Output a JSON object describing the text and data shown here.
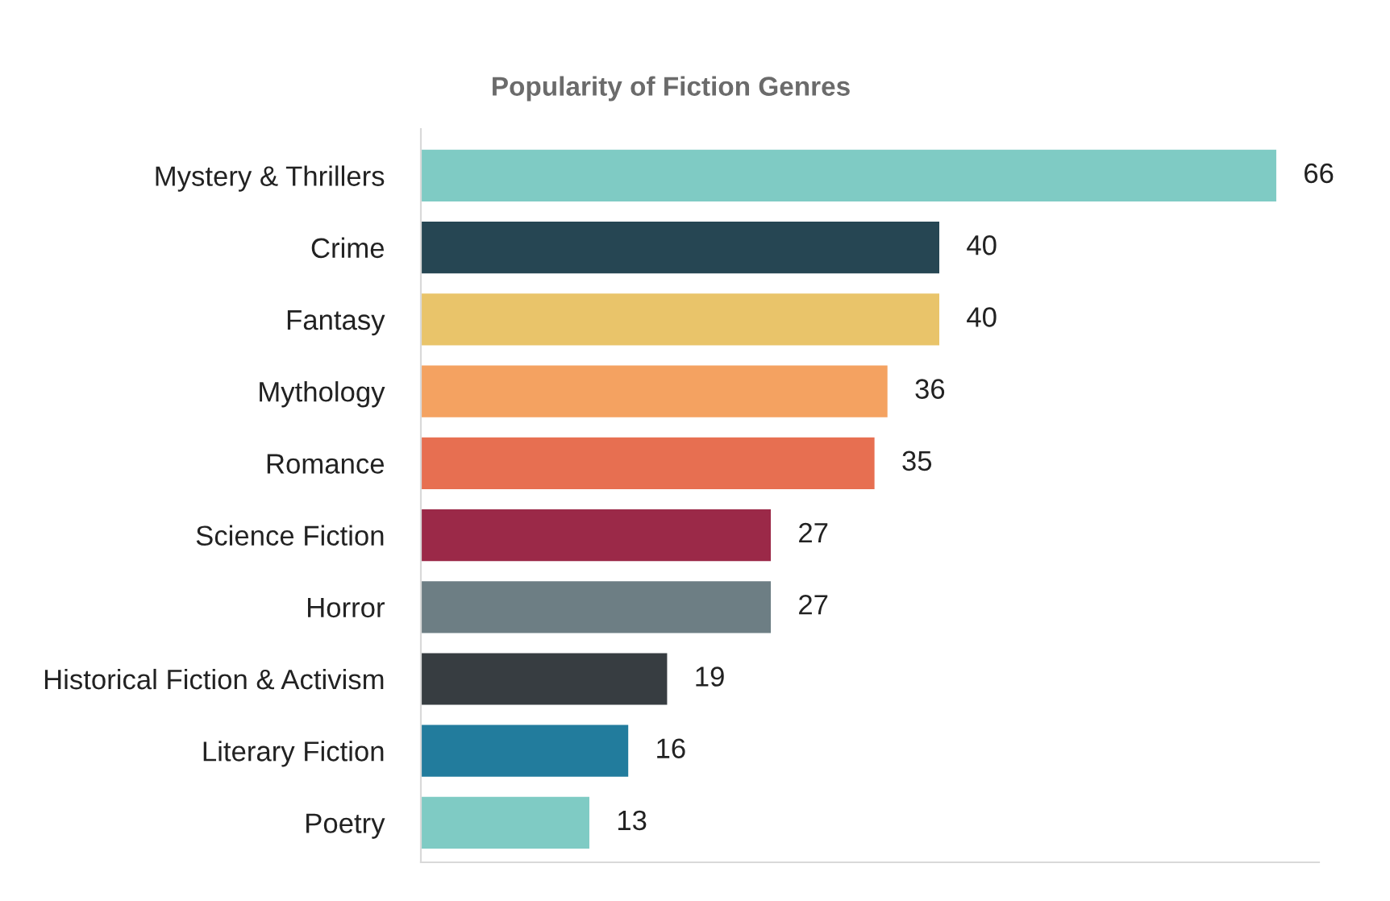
{
  "chart_data": {
    "type": "bar",
    "orientation": "horizontal",
    "title": "Popularity of Fiction Genres",
    "categories": [
      "Mystery & Thrillers",
      "Crime",
      "Fantasy",
      "Mythology",
      "Romance",
      "Science Fiction",
      "Horror",
      "Historical Fiction & Activism",
      "Literary Fiction",
      "Poetry"
    ],
    "values": [
      66,
      40,
      40,
      36,
      35,
      27,
      27,
      19,
      16,
      13
    ],
    "colors": [
      "#7fcbc4",
      "#264653",
      "#e9c46a",
      "#f4a261",
      "#e76f51",
      "#9b2948",
      "#6d7e84",
      "#373d41",
      "#227c9d",
      "#7fcbc4"
    ],
    "data_labels": true,
    "grid": false,
    "legend": false
  }
}
